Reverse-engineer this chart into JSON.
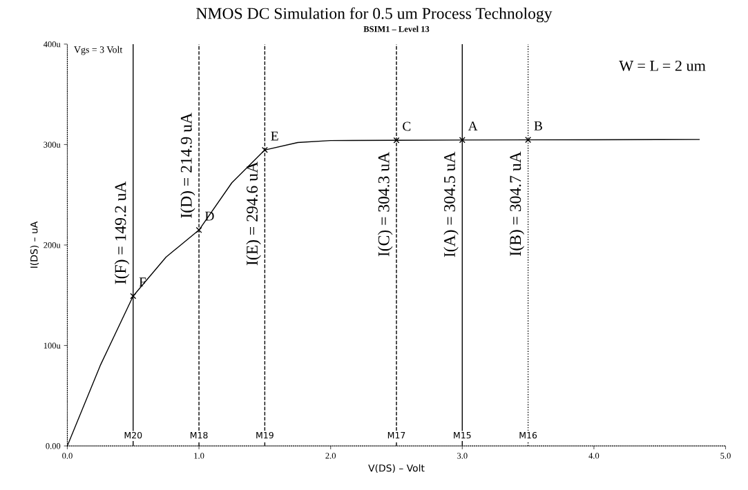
{
  "chart_data": {
    "type": "line",
    "title": "NMOS DC Simulation for 0.5 um Process Technology",
    "subtitle": "BSIM1 – Level 13",
    "xlabel": "V(DS) – Volt",
    "ylabel": "I(DS) – uA",
    "xlim": [
      0,
      5
    ],
    "xticks": [
      {
        "value": 0,
        "label": "0.0"
      },
      {
        "value": 1,
        "label": "1.0"
      },
      {
        "value": 2,
        "label": "2.0"
      },
      {
        "value": 3,
        "label": "3.0"
      },
      {
        "value": 4,
        "label": "4.0"
      },
      {
        "value": 5,
        "label": "5.0"
      }
    ],
    "ylim": [
      0,
      400
    ],
    "yticks": [
      {
        "value": 0,
        "label": "0.00"
      },
      {
        "value": 100,
        "label": "100u"
      },
      {
        "value": 200,
        "label": "200u"
      },
      {
        "value": 300,
        "label": "300u"
      },
      {
        "value": 400,
        "label": "400u"
      }
    ],
    "grid": false,
    "series": [
      {
        "color": "#000000",
        "line_style": "solid",
        "marker": "none",
        "x": [
          0,
          0.25,
          0.5,
          0.75,
          1.0,
          1.25,
          1.5,
          1.75,
          2.0,
          2.5,
          3.0,
          3.5,
          4.0,
          4.5,
          4.8
        ],
        "values": [
          0,
          80,
          149.2,
          188,
          214.9,
          262,
          294.6,
          302,
          304,
          304.3,
          304.5,
          304.7,
          304.8,
          304.9,
          305
        ]
      },
      {
        "type": "scatter",
        "color": "#000000",
        "marker": "cross",
        "x": [
          0.5,
          1.0,
          1.5,
          2.5,
          3.0,
          3.5
        ],
        "values": [
          149.2,
          214.9,
          294.6,
          304.3,
          304.5,
          304.7
        ]
      }
    ],
    "ref_lines": [
      {
        "axis": "x",
        "value": 0.5,
        "label": "M20",
        "color": "#000000",
        "line_style": "solid"
      },
      {
        "axis": "x",
        "value": 1.0,
        "label": "M18",
        "color": "#000000",
        "line_style": "dashed"
      },
      {
        "axis": "x",
        "value": 1.5,
        "label": "M19",
        "color": "#000000",
        "line_style": "dashed"
      },
      {
        "axis": "x",
        "value": 2.5,
        "label": "M17",
        "color": "#000000",
        "line_style": "dashed"
      },
      {
        "axis": "x",
        "value": 3.0,
        "label": "M15",
        "color": "#000000",
        "line_style": "solid"
      },
      {
        "axis": "x",
        "value": 3.5,
        "label": "M16",
        "color": "#000000",
        "line_style": "dotted"
      }
    ],
    "annotations": [
      "Vgs = 3 Volt",
      "W = L = 2 um",
      {
        "text": "I(F) = 149.2 uA",
        "x": 0.5,
        "y": 149.2
      },
      {
        "text": "I(D) = 214.9 uA",
        "x": 1.0,
        "y": 214.9
      },
      {
        "text": "I(E) = 294.6 uA",
        "x": 1.5,
        "y": 294.6
      },
      {
        "text": "I(C) = 304.3 uA",
        "x": 2.5,
        "y": 304.3
      },
      {
        "text": "I(A) = 304.5 uA",
        "x": 3.0,
        "y": 304.5
      },
      {
        "text": "I(B) = 304.7 uA",
        "x": 3.5,
        "y": 304.7
      },
      {
        "text": "F",
        "x": 0.5,
        "y": 149.2
      },
      {
        "text": "D",
        "x": 1.0,
        "y": 214.9
      },
      {
        "text": "E",
        "x": 1.5,
        "y": 294.6
      },
      {
        "text": "C",
        "x": 2.5,
        "y": 304.3
      },
      {
        "text": "A",
        "x": 3.0,
        "y": 304.5
      },
      {
        "text": "B",
        "x": 3.5,
        "y": 304.7
      }
    ]
  }
}
